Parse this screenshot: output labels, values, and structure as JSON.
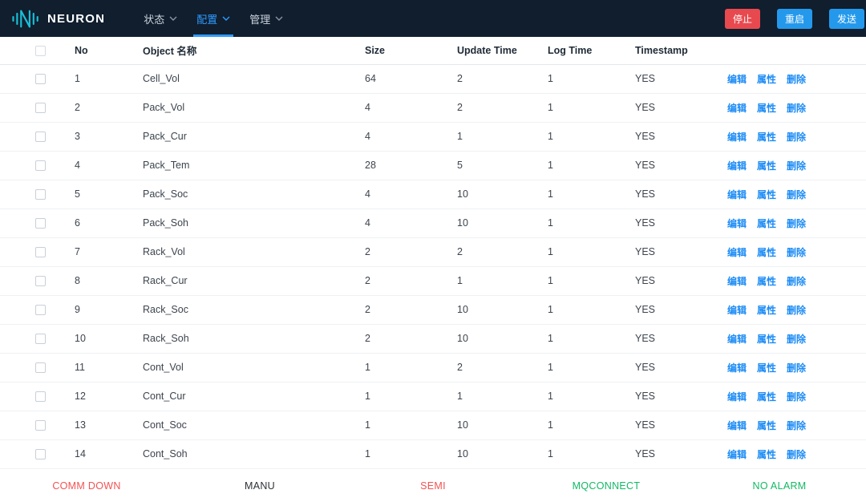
{
  "navbar": {
    "brand": "NEURON",
    "items": [
      {
        "label": "状态",
        "active": false
      },
      {
        "label": "配置",
        "active": true
      },
      {
        "label": "管理",
        "active": false
      }
    ],
    "buttons": [
      {
        "name": "stop-button",
        "label": "停止",
        "color": "#e8494f"
      },
      {
        "name": "restart-button",
        "label": "重启",
        "color": "#2499ec"
      },
      {
        "name": "send-button",
        "label": "发送",
        "color": "#2499ec"
      }
    ]
  },
  "table": {
    "headers": [
      "No",
      "Object 名称",
      "Size",
      "Update Time",
      "Log Time",
      "Timestamp"
    ],
    "action_labels": [
      "编辑",
      "属性",
      "删除"
    ],
    "link_color": "#1b8bf5",
    "rows": [
      {
        "no": "1",
        "name": "Cell_Vol",
        "size": "64",
        "update_time": "2",
        "log_time": "1",
        "timestamp": "YES"
      },
      {
        "no": "2",
        "name": "Pack_Vol",
        "size": "4",
        "update_time": "2",
        "log_time": "1",
        "timestamp": "YES"
      },
      {
        "no": "3",
        "name": "Pack_Cur",
        "size": "4",
        "update_time": "1",
        "log_time": "1",
        "timestamp": "YES"
      },
      {
        "no": "4",
        "name": "Pack_Tem",
        "size": "28",
        "update_time": "5",
        "log_time": "1",
        "timestamp": "YES"
      },
      {
        "no": "5",
        "name": "Pack_Soc",
        "size": "4",
        "update_time": "10",
        "log_time": "1",
        "timestamp": "YES"
      },
      {
        "no": "6",
        "name": "Pack_Soh",
        "size": "4",
        "update_time": "10",
        "log_time": "1",
        "timestamp": "YES"
      },
      {
        "no": "7",
        "name": "Rack_Vol",
        "size": "2",
        "update_time": "2",
        "log_time": "1",
        "timestamp": "YES"
      },
      {
        "no": "8",
        "name": "Rack_Cur",
        "size": "2",
        "update_time": "1",
        "log_time": "1",
        "timestamp": "YES"
      },
      {
        "no": "9",
        "name": "Rack_Soc",
        "size": "2",
        "update_time": "10",
        "log_time": "1",
        "timestamp": "YES"
      },
      {
        "no": "10",
        "name": "Rack_Soh",
        "size": "2",
        "update_time": "10",
        "log_time": "1",
        "timestamp": "YES"
      },
      {
        "no": "11",
        "name": "Cont_Vol",
        "size": "1",
        "update_time": "2",
        "log_time": "1",
        "timestamp": "YES"
      },
      {
        "no": "12",
        "name": "Cont_Cur",
        "size": "1",
        "update_time": "1",
        "log_time": "1",
        "timestamp": "YES"
      },
      {
        "no": "13",
        "name": "Cont_Soc",
        "size": "1",
        "update_time": "10",
        "log_time": "1",
        "timestamp": "YES"
      },
      {
        "no": "14",
        "name": "Cont_Soh",
        "size": "1",
        "update_time": "10",
        "log_time": "1",
        "timestamp": "YES"
      }
    ]
  },
  "footer": {
    "items": [
      {
        "label": "COMM DOWN",
        "color": "#f25353"
      },
      {
        "label": "MANU",
        "color": "#2d3237"
      },
      {
        "label": "SEMI",
        "color": "#f25353"
      },
      {
        "label": "MQCONNECT",
        "color": "#12b964"
      },
      {
        "label": "NO ALARM",
        "color": "#12b964"
      }
    ]
  },
  "brand_color": "#19c0d8"
}
